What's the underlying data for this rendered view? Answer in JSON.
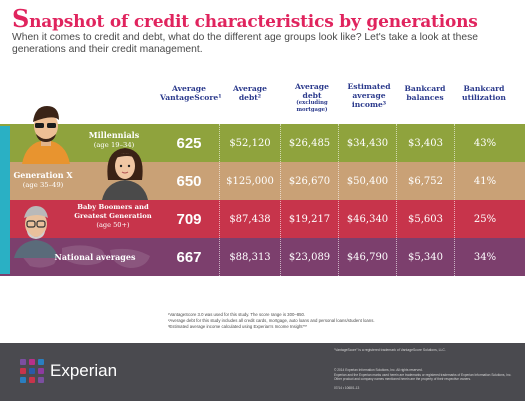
{
  "title": {
    "first": "S",
    "rest": "napshot of credit characteristics by generations"
  },
  "subtitle": "When it comes to credit and debt, what do the different age groups look like? Let's take a look at these generations and their credit management.",
  "headers": [
    {
      "lines": [
        "Average",
        "VantageScore¹"
      ],
      "small": ""
    },
    {
      "lines": [
        "Average",
        "debt²"
      ],
      "small": ""
    },
    {
      "lines": [
        "Average",
        "debt"
      ],
      "small": "(excluding mortgage)"
    },
    {
      "lines": [
        "Estimated",
        "average",
        "income³"
      ],
      "small": ""
    },
    {
      "lines": [
        "Bankcard",
        "balances"
      ],
      "small": ""
    },
    {
      "lines": [
        "Bankcard",
        "utilization"
      ],
      "small": ""
    }
  ],
  "rows": [
    {
      "name": "Millennials",
      "age": "(age 19–34)",
      "score": "625",
      "debt": "$52,120",
      "debt_ex": "$26,485",
      "income": "$34,430",
      "balances": "$3,403",
      "utilization": "43%",
      "color": "#8fa33d"
    },
    {
      "name": "Generation X",
      "age": "(age 35–49)",
      "score": "650",
      "debt": "$125,000",
      "debt_ex": "$26,670",
      "income": "$50,400",
      "balances": "$6,752",
      "utilization": "41%",
      "color": "#c9a176"
    },
    {
      "name": "Baby Boomers and Greatest Generation",
      "age": "(age 50+)",
      "score": "709",
      "debt": "$87,438",
      "debt_ex": "$19,217",
      "income": "$46,340",
      "balances": "$5,603",
      "utilization": "25%",
      "color": "#c7344b"
    },
    {
      "name": "National averages",
      "age": "",
      "score": "667",
      "debt": "$88,313",
      "debt_ex": "$23,089",
      "income": "$46,790",
      "balances": "$5,340",
      "utilization": "34%",
      "color": "#7c3f6d"
    }
  ],
  "notes": [
    "¹VantageScore 3.0 was used for this study. The score range is 300–850.",
    "²Average debt for this study includes all credit cards, mortgage, auto loans and personal loans/student loans.",
    "³Estimated average income calculated using Experian's Income Insight™"
  ],
  "footer": {
    "brand": "Experian",
    "trademark": "“VantageScore” is a registered trademark of VantageScore Solutions, LLC.",
    "copyright": "© 2014 Experian Information Solutions, Inc. All rights reserved.",
    "legal1": "Experian and the Experian marks used herein are trademarks or registered trademarks of Experian Information Solutions, Inc.",
    "legal2": "Other product and company names mentioned herein are the property of their respective owners.",
    "code": "07/14 • 1068/1-13"
  },
  "colors": {
    "title": "#e0245e",
    "header_text": "#2b3a8c",
    "left_tab": "#2ab0c4",
    "footer_bg": "#4a4a4f"
  }
}
